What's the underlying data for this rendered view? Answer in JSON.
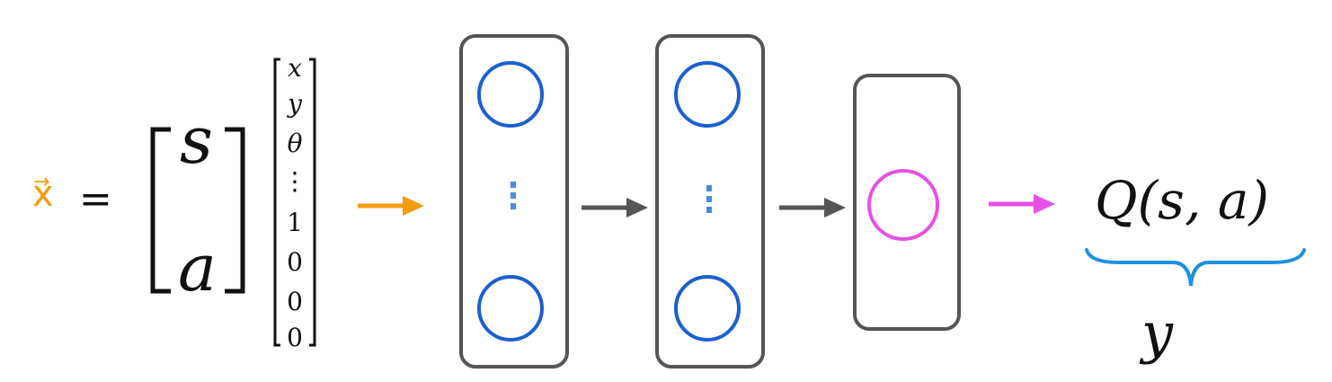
{
  "input": {
    "variable": "x",
    "arrow_mark": "→",
    "equals": "=",
    "state_symbol": "s",
    "action_symbol": "a"
  },
  "state_vector": [
    "x",
    "y",
    "θ",
    "⋮",
    "1",
    "0",
    "0",
    "0"
  ],
  "layers": [
    {
      "name": "hidden-layer-1",
      "ellipsis": "⋮"
    },
    {
      "name": "hidden-layer-2",
      "ellipsis": "⋮"
    },
    {
      "name": "output-layer"
    }
  ],
  "output": {
    "q_label": "Q(s, a)",
    "target_label": "y"
  },
  "colors": {
    "input_arrow": "#f39c12",
    "hidden_arrow": "#555555",
    "output_arrow": "#e64fe6",
    "hidden_node": "#1c5fd1",
    "output_node": "#e64fe6",
    "brace": "#1e90e0",
    "box_border": "#555555"
  }
}
